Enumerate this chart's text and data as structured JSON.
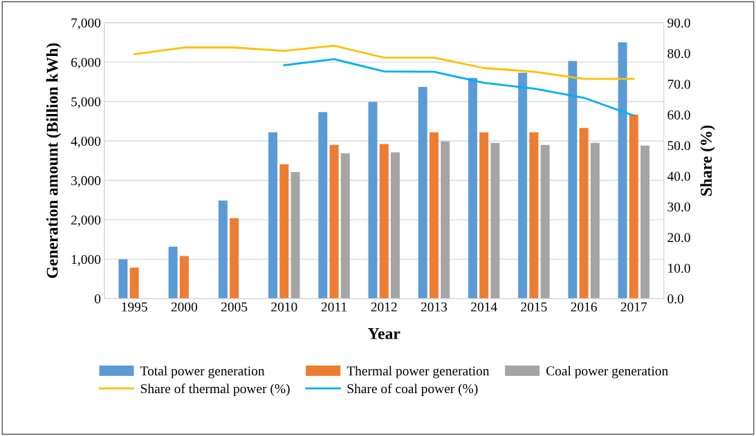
{
  "chart_data": {
    "type": "bar",
    "xlabel": "Year",
    "ylabel": "Generation amount (Billion kWh)",
    "y2label": "Share (%)",
    "categories": [
      "1995",
      "2000",
      "2005",
      "2010",
      "2011",
      "2012",
      "2013",
      "2014",
      "2015",
      "2016",
      "2017"
    ],
    "series": [
      {
        "name": "Total power generation",
        "color": "#5b9bd5",
        "values": [
          1000,
          1320,
          2490,
          4220,
          4730,
          4990,
          5370,
          5600,
          5730,
          6030,
          6500
        ]
      },
      {
        "name": "Thermal power generation",
        "color": "#ed7d31",
        "values": [
          790,
          1080,
          2040,
          3410,
          3900,
          3920,
          4220,
          4220,
          4220,
          4330,
          4670
        ]
      },
      {
        "name": "Coal power generation",
        "color": "#a5a5a5",
        "values": [
          null,
          null,
          null,
          3210,
          3690,
          3710,
          3990,
          3950,
          3900,
          3950,
          3880
        ]
      },
      {
        "name": "Share of thermal power (%)",
        "type": "line",
        "axis": "y2",
        "color": "#ffc000",
        "values": [
          79.7,
          81.9,
          81.9,
          80.8,
          82.5,
          78.6,
          78.6,
          75.2,
          74.0,
          71.7,
          71.7
        ]
      },
      {
        "name": "Share of coal power (%)",
        "type": "line",
        "axis": "y2",
        "color": "#00b0f0",
        "values": [
          null,
          null,
          null,
          76.1,
          78.1,
          74.1,
          74.0,
          70.4,
          68.5,
          65.5,
          59.7
        ]
      }
    ],
    "ylim": [
      0,
      7000
    ],
    "yticks": [
      {
        "value": 0,
        "label": "0"
      },
      {
        "value": 1000,
        "label": "1,000"
      },
      {
        "value": 2000,
        "label": "2,000"
      },
      {
        "value": 3000,
        "label": "3,000"
      },
      {
        "value": 4000,
        "label": "4,000"
      },
      {
        "value": 5000,
        "label": "5,000"
      },
      {
        "value": 6000,
        "label": "6,000"
      },
      {
        "value": 7000,
        "label": "7,000"
      }
    ],
    "y2lim": [
      0,
      90
    ],
    "y2ticks": [
      {
        "value": 0,
        "label": "0.0"
      },
      {
        "value": 10,
        "label": "10.0"
      },
      {
        "value": 20,
        "label": "20.0"
      },
      {
        "value": 30,
        "label": "30.0"
      },
      {
        "value": 40,
        "label": "40.0"
      },
      {
        "value": 50,
        "label": "50.0"
      },
      {
        "value": 60,
        "label": "60.0"
      },
      {
        "value": 70,
        "label": "70.0"
      },
      {
        "value": 80,
        "label": "80.0"
      },
      {
        "value": 90,
        "label": "90.0"
      }
    ],
    "grid": "y",
    "legend": "bottom",
    "marker": "none"
  }
}
